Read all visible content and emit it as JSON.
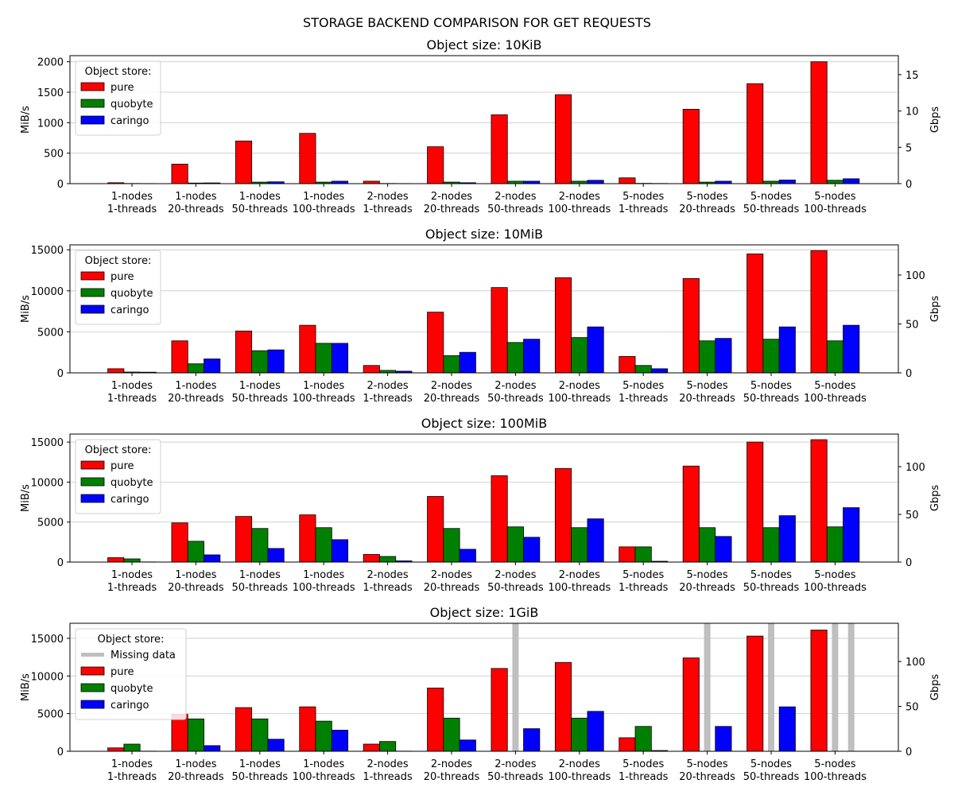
{
  "title": "STORAGE BACKEND COMPARISON FOR GET REQUESTS",
  "chart_data": [
    {
      "type": "bar",
      "title": "Object size: 10KiB",
      "ylabel": "MiB/s",
      "y2label": "Gbps",
      "ylim": [
        0,
        2100
      ],
      "yticks": [
        0,
        500,
        1000,
        1500,
        2000
      ],
      "y2ticks": [
        0,
        5,
        10,
        15
      ],
      "grid": "horizontal",
      "legend": {
        "title": "Object store:",
        "placement": "top-left",
        "entries": [
          "pure",
          "quobyte",
          "caringo"
        ]
      },
      "categories": [
        [
          "1-nodes",
          "1-threads"
        ],
        [
          "1-nodes",
          "20-threads"
        ],
        [
          "1-nodes",
          "50-threads"
        ],
        [
          "1-nodes",
          "100-threads"
        ],
        [
          "2-nodes",
          "1-threads"
        ],
        [
          "2-nodes",
          "20-threads"
        ],
        [
          "2-nodes",
          "50-threads"
        ],
        [
          "2-nodes",
          "100-threads"
        ],
        [
          "5-nodes",
          "1-threads"
        ],
        [
          "5-nodes",
          "20-threads"
        ],
        [
          "5-nodes",
          "50-threads"
        ],
        [
          "5-nodes",
          "100-threads"
        ]
      ],
      "series": [
        {
          "name": "pure",
          "color": "#ff0000",
          "values": [
            15,
            320,
            700,
            825,
            40,
            605,
            1130,
            1460,
            95,
            1220,
            1640,
            2000
          ]
        },
        {
          "name": "quobyte",
          "color": "#008000",
          "values": [
            3,
            10,
            25,
            25,
            3,
            25,
            40,
            40,
            5,
            25,
            40,
            55
          ]
        },
        {
          "name": "caringo",
          "color": "#0000ff",
          "values": [
            2,
            12,
            30,
            40,
            2,
            15,
            40,
            55,
            3,
            40,
            60,
            80
          ]
        }
      ]
    },
    {
      "type": "bar",
      "title": "Object size: 10MiB",
      "ylabel": "MiB/s",
      "y2label": "Gbps",
      "ylim": [
        0,
        15600
      ],
      "yticks": [
        0,
        5000,
        10000,
        15000
      ],
      "y2ticks": [
        0,
        50,
        100
      ],
      "grid": "horizontal",
      "legend": {
        "title": "Object store:",
        "placement": "top-left",
        "entries": [
          "pure",
          "quobyte",
          "caringo"
        ]
      },
      "categories": [
        [
          "1-nodes",
          "1-threads"
        ],
        [
          "1-nodes",
          "20-threads"
        ],
        [
          "1-nodes",
          "50-threads"
        ],
        [
          "1-nodes",
          "100-threads"
        ],
        [
          "2-nodes",
          "1-threads"
        ],
        [
          "2-nodes",
          "20-threads"
        ],
        [
          "2-nodes",
          "50-threads"
        ],
        [
          "2-nodes",
          "100-threads"
        ],
        [
          "5-nodes",
          "1-threads"
        ],
        [
          "5-nodes",
          "20-threads"
        ],
        [
          "5-nodes",
          "50-threads"
        ],
        [
          "5-nodes",
          "100-threads"
        ]
      ],
      "series": [
        {
          "name": "pure",
          "color": "#ff0000",
          "values": [
            500,
            3900,
            5100,
            5800,
            900,
            7400,
            10400,
            11600,
            2000,
            11500,
            14500,
            14900
          ]
        },
        {
          "name": "quobyte",
          "color": "#008000",
          "values": [
            100,
            1100,
            2700,
            3600,
            300,
            2100,
            3700,
            4300,
            900,
            3900,
            4100,
            3900
          ]
        },
        {
          "name": "caringo",
          "color": "#0000ff",
          "values": [
            80,
            1700,
            2800,
            3600,
            200,
            2500,
            4100,
            5600,
            500,
            4200,
            5600,
            5800
          ]
        }
      ]
    },
    {
      "type": "bar",
      "title": "Object size: 100MiB",
      "ylabel": "MiB/s",
      "y2label": "Gbps",
      "ylim": [
        0,
        16000
      ],
      "yticks": [
        0,
        5000,
        10000,
        15000
      ],
      "y2ticks": [
        0,
        50,
        100
      ],
      "grid": "horizontal",
      "legend": {
        "title": "Object store:",
        "placement": "top-left",
        "entries": [
          "pure",
          "quobyte",
          "caringo"
        ]
      },
      "categories": [
        [
          "1-nodes",
          "1-threads"
        ],
        [
          "1-nodes",
          "20-threads"
        ],
        [
          "1-nodes",
          "50-threads"
        ],
        [
          "1-nodes",
          "100-threads"
        ],
        [
          "2-nodes",
          "1-threads"
        ],
        [
          "2-nodes",
          "20-threads"
        ],
        [
          "2-nodes",
          "50-threads"
        ],
        [
          "2-nodes",
          "100-threads"
        ],
        [
          "5-nodes",
          "1-threads"
        ],
        [
          "5-nodes",
          "20-threads"
        ],
        [
          "5-nodes",
          "50-threads"
        ],
        [
          "5-nodes",
          "100-threads"
        ]
      ],
      "series": [
        {
          "name": "pure",
          "color": "#ff0000",
          "values": [
            550,
            4900,
            5700,
            5900,
            950,
            8200,
            10800,
            11700,
            1900,
            12000,
            15000,
            15300
          ]
        },
        {
          "name": "quobyte",
          "color": "#008000",
          "values": [
            400,
            2600,
            4200,
            4300,
            700,
            4200,
            4400,
            4300,
            1900,
            4300,
            4300,
            4400
          ]
        },
        {
          "name": "caringo",
          "color": "#0000ff",
          "values": [
            20,
            900,
            1700,
            2800,
            150,
            1600,
            3100,
            5400,
            100,
            3200,
            5800,
            6800
          ]
        }
      ]
    },
    {
      "type": "bar",
      "title": "Object size: 1GiB",
      "ylabel": "MiB/s",
      "y2label": "Gbps",
      "ylim": [
        0,
        17000
      ],
      "yticks": [
        0,
        5000,
        10000,
        15000
      ],
      "y2ticks": [
        0,
        50,
        100
      ],
      "grid": "horizontal",
      "legend": {
        "title": "Object store:",
        "placement": "top-left",
        "entries": [
          "Missing data",
          "pure",
          "quobyte",
          "caringo"
        ]
      },
      "missing_label": "Missing data",
      "missing_color": "#bfbfbf",
      "categories": [
        [
          "1-nodes",
          "1-threads"
        ],
        [
          "1-nodes",
          "20-threads"
        ],
        [
          "1-nodes",
          "50-threads"
        ],
        [
          "1-nodes",
          "100-threads"
        ],
        [
          "2-nodes",
          "1-threads"
        ],
        [
          "2-nodes",
          "20-threads"
        ],
        [
          "2-nodes",
          "50-threads"
        ],
        [
          "2-nodes",
          "100-threads"
        ],
        [
          "5-nodes",
          "1-threads"
        ],
        [
          "5-nodes",
          "20-threads"
        ],
        [
          "5-nodes",
          "50-threads"
        ],
        [
          "5-nodes",
          "100-threads"
        ]
      ],
      "series": [
        {
          "name": "pure",
          "color": "#ff0000",
          "values": [
            450,
            4900,
            5800,
            5900,
            950,
            8400,
            11000,
            11800,
            1800,
            12400,
            15300,
            16100
          ]
        },
        {
          "name": "quobyte",
          "color": "#008000",
          "values": [
            950,
            4300,
            4300,
            4000,
            1300,
            4400,
            null,
            4400,
            3300,
            null,
            null,
            null
          ]
        },
        {
          "name": "caringo",
          "color": "#0000ff",
          "values": [
            20,
            750,
            1600,
            2800,
            20,
            1500,
            3000,
            5300,
            100,
            3300,
            5900,
            null
          ]
        }
      ]
    }
  ]
}
